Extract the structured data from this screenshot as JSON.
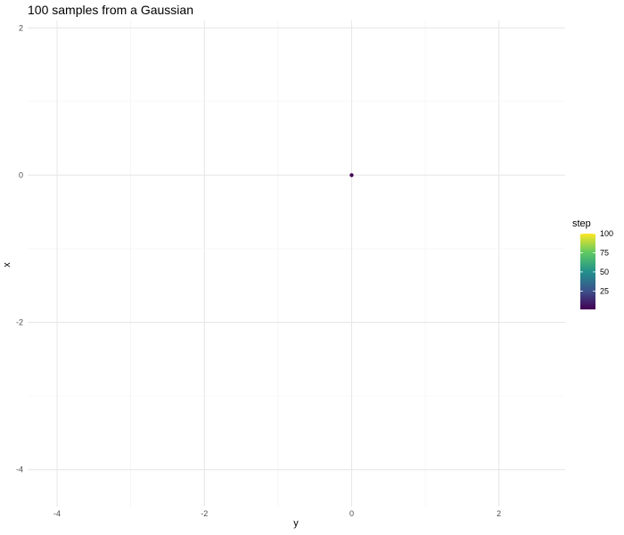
{
  "chart_data": {
    "type": "scatter",
    "title": "100 samples from a Gaussian",
    "xlabel": "y",
    "ylabel": "x",
    "xlim": [
      -4.4,
      2.9
    ],
    "ylim": [
      -4.5,
      2.1
    ],
    "x_ticks": [
      -4,
      -2,
      0,
      2
    ],
    "y_ticks": [
      2,
      0,
      -2,
      -4
    ],
    "grid": true,
    "points": [
      {
        "x": 0,
        "y": 0,
        "step": 1
      }
    ],
    "legend": {
      "title": "step",
      "position": "right",
      "range": [
        1,
        100
      ],
      "ticks": [
        100,
        75,
        50,
        25
      ],
      "colormap": [
        "#440154",
        "#3b528b",
        "#21918c",
        "#5ec962",
        "#fde725"
      ]
    }
  }
}
